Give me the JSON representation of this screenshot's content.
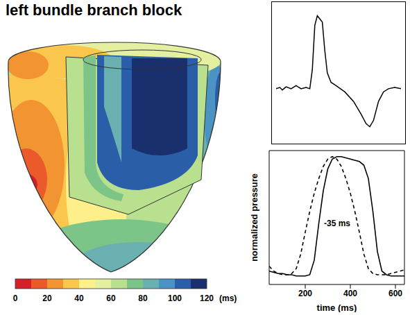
{
  "title": "left bundle branch block",
  "activation_map": {
    "colorbar": {
      "range": [
        0,
        120
      ],
      "ticks": [
        0,
        20,
        40,
        60,
        80,
        100,
        120
      ],
      "label": "(ms)",
      "colors": [
        "#d62027",
        "#ea5a2a",
        "#f39433",
        "#fbc64e",
        "#fdf08a",
        "#e4efa0",
        "#b8e08f",
        "#7cc488",
        "#6ab0b0",
        "#4a93c2",
        "#2b5ea8",
        "#1a2f6e"
      ]
    }
  },
  "chart_data": [
    {
      "type": "line",
      "x": [
        0,
        3,
        5,
        8,
        12,
        16,
        20,
        24,
        27,
        29,
        31,
        33,
        35,
        37,
        39,
        41,
        44,
        48,
        55,
        62,
        68,
        72,
        75,
        78,
        82,
        86,
        90,
        95,
        100
      ],
      "values": [
        0,
        0.02,
        -0.02,
        0.03,
        0,
        0.05,
        0,
        0.02,
        0,
        0.3,
        1.0,
        1.15,
        1.1,
        1.05,
        0.6,
        0.25,
        0.1,
        0.05,
        -0.05,
        -0.2,
        -0.4,
        -0.55,
        -0.6,
        -0.5,
        -0.2,
        -0.05,
        0,
        0.02,
        0
      ],
      "xlim": [
        0,
        100
      ],
      "ylim": [
        -0.8,
        1.3
      ],
      "color": "#000000",
      "tick_labels": false
    },
    {
      "type": "line",
      "xlabel": "time (ms)",
      "ylabel": "normalized pressure",
      "annotations": [
        "-35 ms"
      ],
      "x": [
        40,
        60,
        80,
        100,
        120,
        140,
        160,
        180,
        200,
        220,
        240,
        260,
        280,
        300,
        320,
        340,
        360,
        380,
        400,
        420,
        440,
        460,
        480,
        500,
        520,
        540,
        560,
        580,
        600,
        620,
        640
      ],
      "series": [
        {
          "color": "#000000",
          "line_style": "solid",
          "values": [
            0.06,
            0.05,
            0.04,
            0.04,
            0.03,
            0.03,
            0.02,
            0.02,
            0.02,
            0.03,
            0.15,
            0.45,
            0.72,
            0.9,
            0.98,
            1.0,
            1.0,
            0.99,
            0.98,
            0.97,
            0.96,
            0.93,
            0.82,
            0.55,
            0.22,
            0.06,
            0.03,
            0.02,
            0.02,
            0.02,
            0.02
          ]
        },
        {
          "color": "#000000",
          "line_style": "dashed",
          "values": [
            0.1,
            0.06,
            0.04,
            0.03,
            0.03,
            0.04,
            0.08,
            0.2,
            0.38,
            0.55,
            0.7,
            0.82,
            0.92,
            0.98,
            1.0,
            0.98,
            0.92,
            0.82,
            0.7,
            0.55,
            0.38,
            0.2,
            0.08,
            0.04,
            0.03,
            0.03,
            0.03,
            0.04,
            0.05,
            0.06,
            0.07
          ]
        }
      ],
      "xlim": [
        40,
        640
      ],
      "xticks": [
        200,
        400,
        600
      ],
      "ylim": [
        -0.05,
        1.05
      ],
      "tick_labels": "x"
    }
  ]
}
